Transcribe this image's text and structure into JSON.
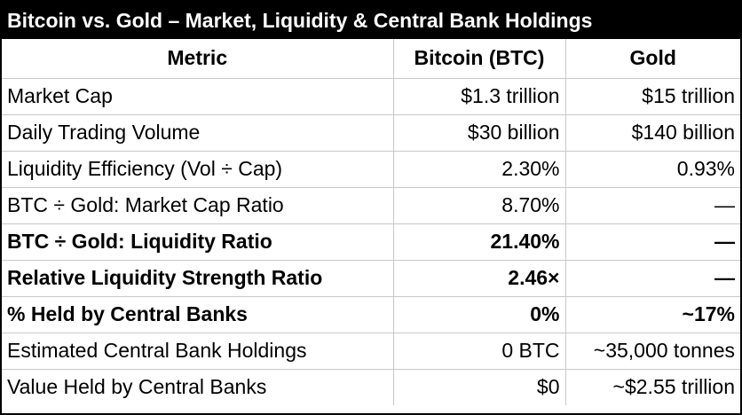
{
  "title": "Bitcoin vs. Gold – Market, Liquidity & Central Bank Holdings",
  "headers": [
    "Metric",
    "Bitcoin (BTC)",
    "Gold"
  ],
  "rows": [
    {
      "metric": "Market Cap",
      "btc": "$1.3 trillion",
      "gold": "$15 trillion",
      "bold": false
    },
    {
      "metric": "Daily Trading Volume",
      "btc": "$30 billion",
      "gold": "$140 billion",
      "bold": false
    },
    {
      "metric": "Liquidity Efficiency (Vol ÷ Cap)",
      "btc": "2.30%",
      "gold": "0.93%",
      "bold": false
    },
    {
      "metric": "BTC ÷ Gold: Market Cap Ratio",
      "btc": "8.70%",
      "gold": "—",
      "bold": false
    },
    {
      "metric": "BTC ÷ Gold: Liquidity Ratio",
      "btc": "21.40%",
      "gold": "—",
      "bold": true
    },
    {
      "metric": "Relative Liquidity Strength Ratio",
      "btc": "2.46×",
      "gold": "—",
      "bold": true
    },
    {
      "metric": "% Held by Central Banks",
      "btc": "0%",
      "gold": "~17%",
      "bold": true
    },
    {
      "metric": "Estimated Central Bank Holdings",
      "btc": "0 BTC",
      "gold": "~35,000 tonnes",
      "bold": false
    },
    {
      "metric": "Value Held by Central Banks",
      "btc": "$0",
      "gold": "~$2.55 trillion",
      "bold": false
    }
  ]
}
